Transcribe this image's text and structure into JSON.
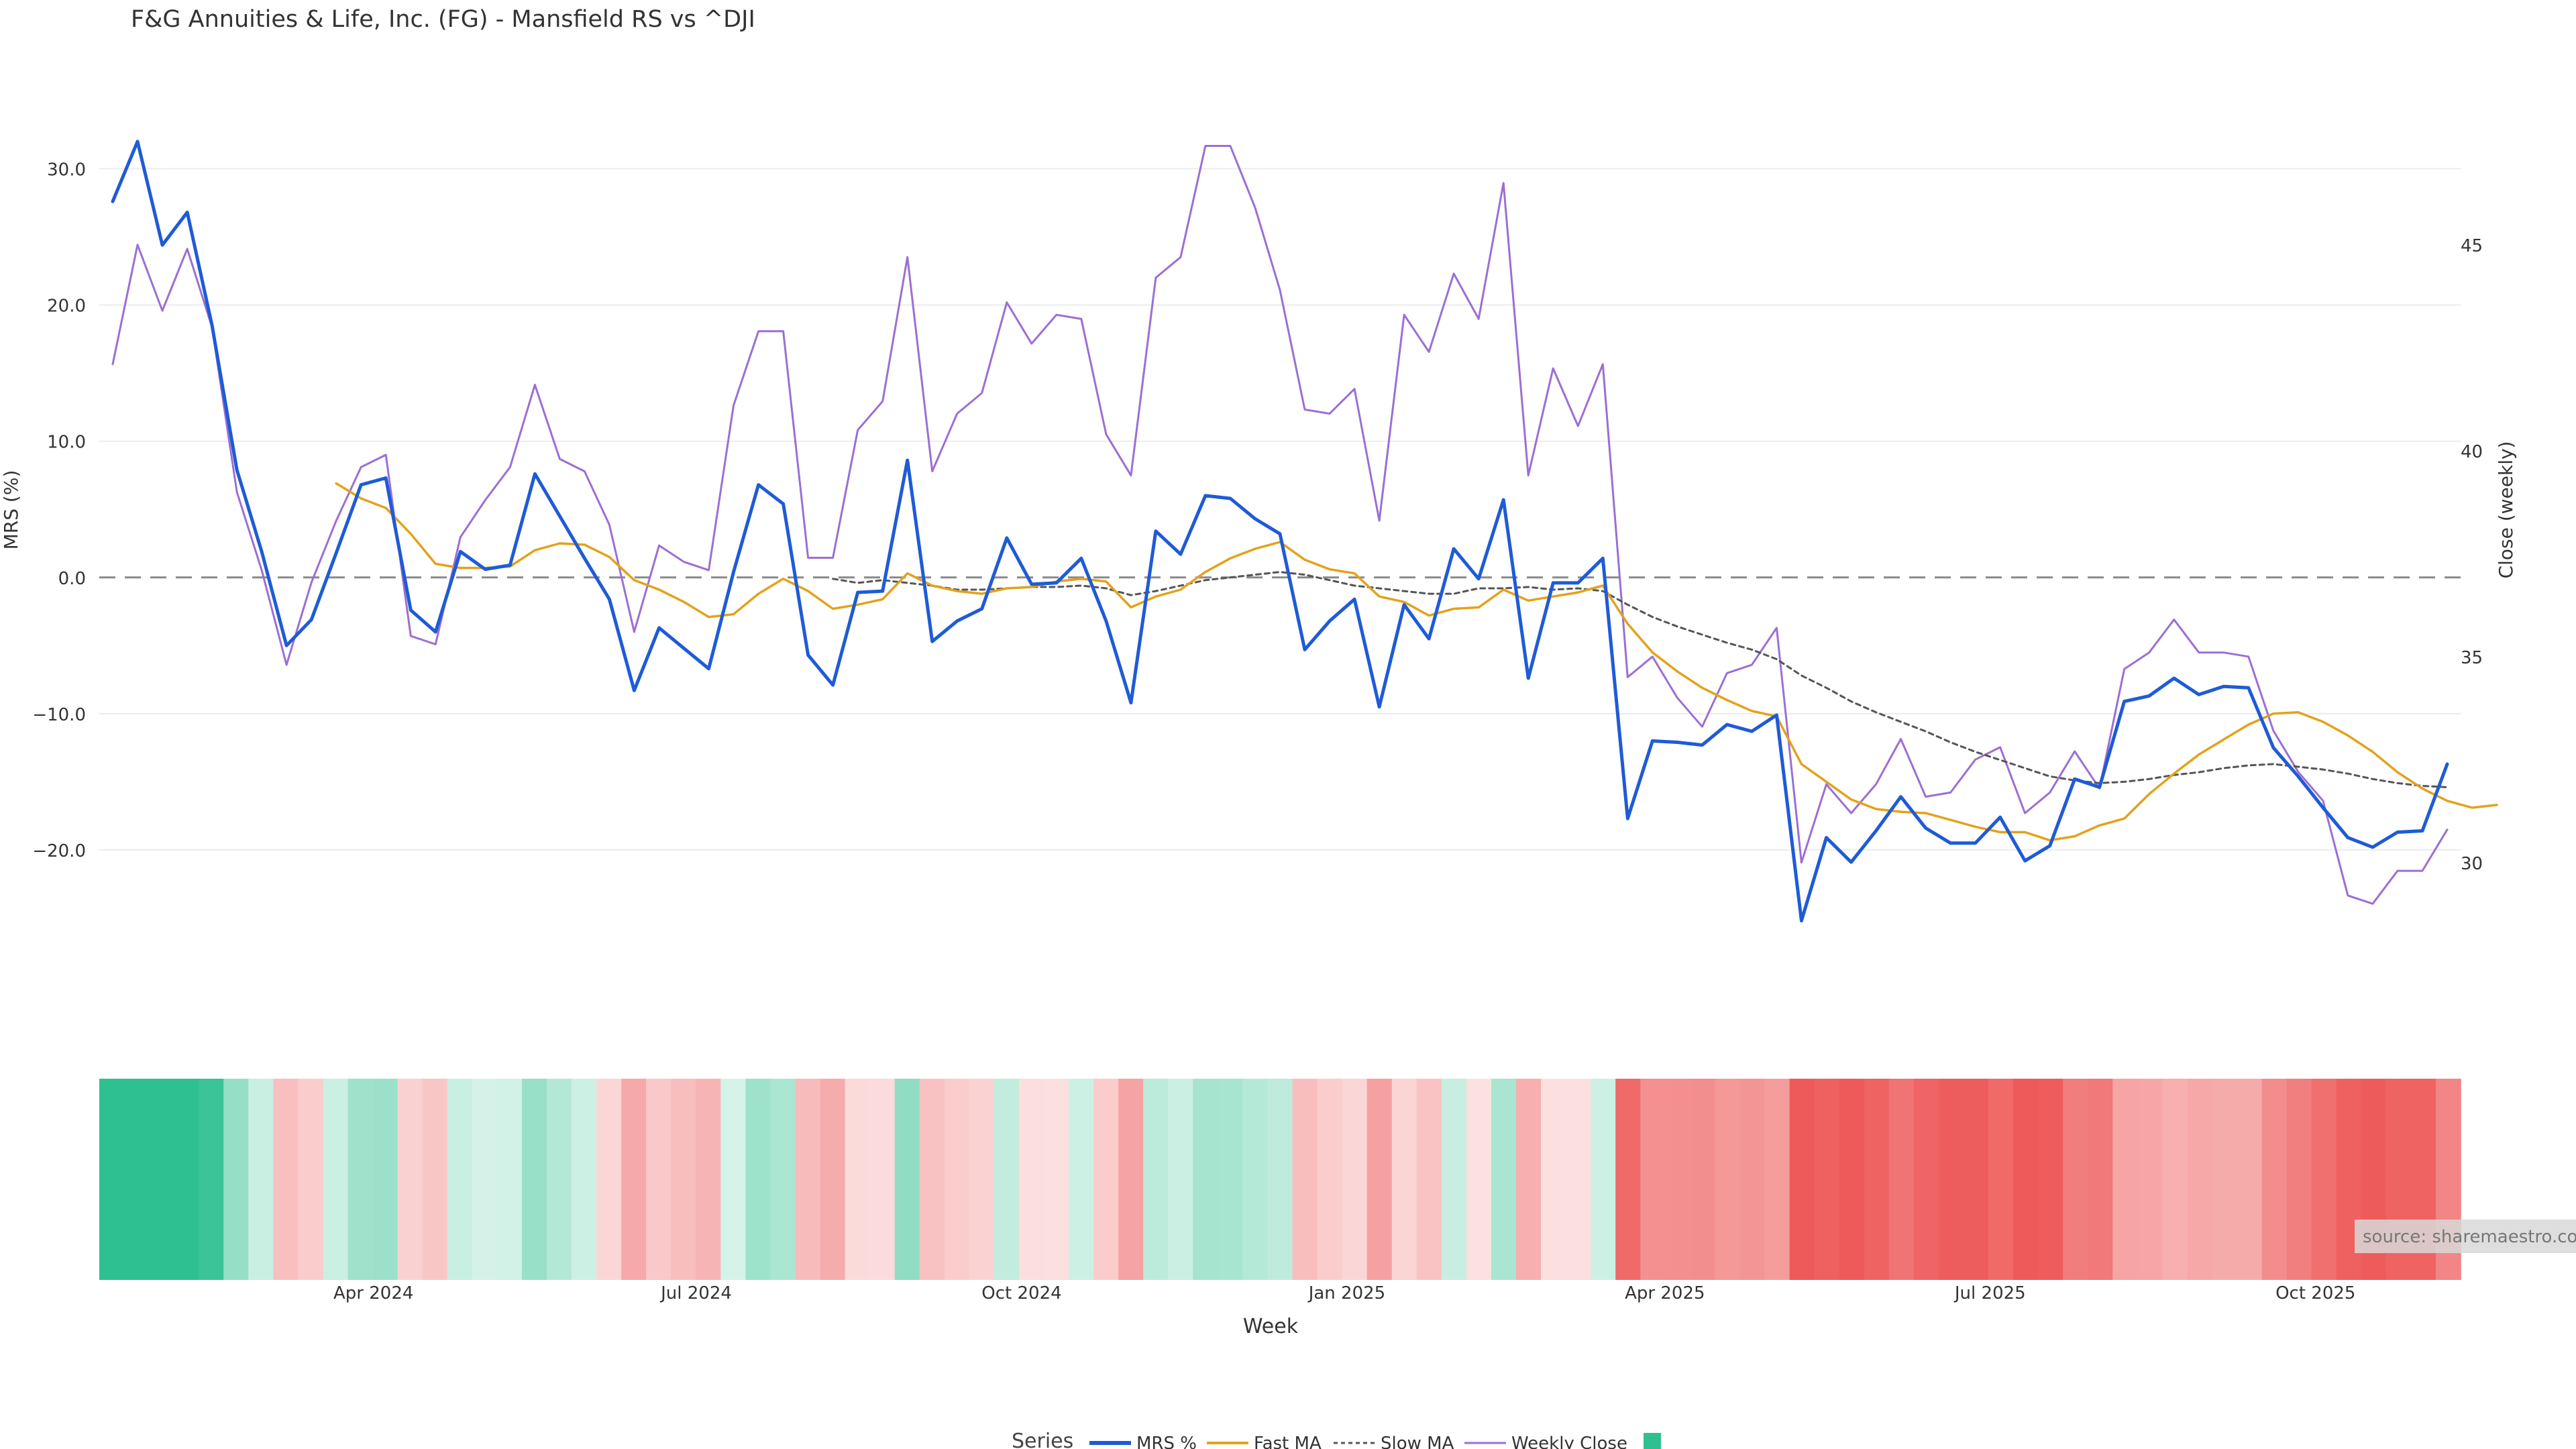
{
  "chart_data": {
    "type": "line",
    "title": "F&G Annuities & Life, Inc. (FG) - Mansfield RS vs ^DJI",
    "xlabel": "Week",
    "ylabel_left": "MRS (%)",
    "ylabel_right": "Close (weekly)",
    "ylim_left": [
      -30.0,
      35.0
    ],
    "ylim_right": [
      27.0,
      48.5
    ],
    "y_ticks_left": [
      30.0,
      20.0,
      10.0,
      0.0,
      -10.0,
      -20.0
    ],
    "y_tick_labels_left": [
      "30.0",
      "20.0",
      "10.0",
      "0.0",
      "−10.0",
      "−20.0"
    ],
    "y_ticks_right": [
      45,
      40,
      35,
      30
    ],
    "y_tick_labels_right": [
      "45",
      "40",
      "35",
      "30"
    ],
    "x_tick_labels": [
      "Apr 2024",
      "Jul 2024",
      "Oct 2024",
      "Jan 2025",
      "Apr 2025",
      "Jul 2025",
      "Oct 2025"
    ],
    "x_tick_weeks": [
      10.5,
      23.5,
      36.6,
      49.7,
      62.5,
      75.6,
      88.7
    ],
    "grid": true,
    "legend_placement": "bottom-center",
    "legend_title": "Series",
    "source_text": "source: sharemaestro.com",
    "colors": {
      "mrs": "#1f5bd6",
      "fast_ma": "#e3a21a",
      "slow_ma": "#555555",
      "weekly_close": "#9b6fd3",
      "legend_swatch": "#2ec090",
      "zero_line": "#8a8a8a"
    },
    "series": [
      {
        "name": "MRS %",
        "axis": "left",
        "x_start": 0,
        "values": [
          27.6,
          32.0,
          24.4,
          26.8,
          18.5,
          7.9,
          1.9,
          -5.0,
          -3.1,
          1.8,
          6.8,
          7.3,
          -2.4,
          -4.0,
          1.9,
          0.6,
          0.9,
          7.6,
          4.5,
          1.4,
          -1.6,
          -8.3,
          -3.7,
          -5.2,
          -6.7,
          0.4,
          6.8,
          5.4,
          -5.7,
          -7.9,
          -1.1,
          -1.0,
          8.6,
          -4.7,
          -3.2,
          -2.3,
          2.9,
          -0.5,
          -0.4,
          1.4,
          -3.2,
          -9.2,
          3.4,
          1.7,
          6.0,
          5.8,
          4.3,
          3.2,
          -5.3,
          -3.2,
          -1.6,
          -9.5,
          -2.0,
          -4.5,
          2.1,
          -0.1,
          5.7,
          -7.4,
          -0.4,
          -0.4,
          1.4,
          -17.7,
          -12.0,
          -12.1,
          -12.3,
          -10.8,
          -11.3,
          -10.1,
          -25.2,
          -19.1,
          -20.9,
          -18.6,
          -16.1,
          -18.4,
          -19.5,
          -19.5,
          -17.6,
          -20.8,
          -19.7,
          -14.8,
          -15.4,
          -9.1,
          -8.7,
          -7.4,
          -8.6,
          -8.0,
          -8.1,
          -12.5,
          -14.6,
          -16.9,
          -19.1,
          -19.8,
          -18.7,
          -18.6,
          -13.7
        ]
      },
      {
        "name": "Fast MA",
        "axis": "left",
        "x_start": 9,
        "values": [
          6.9,
          5.8,
          5.1,
          3.2,
          1.0,
          0.7,
          0.7,
          0.8,
          2.0,
          2.5,
          2.4,
          1.5,
          -0.2,
          -0.9,
          -1.8,
          -2.9,
          -2.7,
          -1.2,
          -0.1,
          -1.0,
          -2.3,
          -2.0,
          -1.6,
          0.3,
          -0.6,
          -1.0,
          -1.2,
          -0.8,
          -0.7,
          -0.3,
          -0.1,
          -0.3,
          -2.2,
          -1.4,
          -0.9,
          0.4,
          1.4,
          2.1,
          2.6,
          1.3,
          0.6,
          0.3,
          -1.4,
          -1.8,
          -2.8,
          -2.3,
          -2.2,
          -0.9,
          -1.7,
          -1.4,
          -1.1,
          -0.6,
          -3.4,
          -5.5,
          -6.9,
          -8.1,
          -9.0,
          -9.8,
          -10.2,
          -13.7,
          -15.0,
          -16.3,
          -17.0,
          -17.2,
          -17.3,
          -17.8,
          -18.3,
          -18.7,
          -18.7,
          -19.3,
          -19.0,
          -18.2,
          -17.7,
          -15.9,
          -14.4,
          -13.0,
          -11.9,
          -10.8,
          -10.0,
          -9.9,
          -10.6,
          -11.6,
          -12.8,
          -14.3,
          -15.5,
          -16.4,
          -16.9,
          -16.7
        ]
      },
      {
        "name": "Slow MA",
        "axis": "left",
        "x_start": 29,
        "values": [
          -0.1,
          -0.4,
          -0.2,
          -0.4,
          -0.6,
          -0.9,
          -0.9,
          -0.8,
          -0.7,
          -0.7,
          -0.6,
          -0.8,
          -1.3,
          -1.0,
          -0.6,
          -0.2,
          0.0,
          0.2,
          0.4,
          0.2,
          -0.2,
          -0.6,
          -0.8,
          -1.0,
          -1.2,
          -1.2,
          -0.8,
          -0.8,
          -0.7,
          -0.9,
          -0.8,
          -1.0,
          -2.0,
          -2.9,
          -3.6,
          -4.2,
          -4.8,
          -5.3,
          -6.0,
          -7.2,
          -8.1,
          -9.1,
          -9.9,
          -10.6,
          -11.3,
          -12.1,
          -12.8,
          -13.4,
          -14.0,
          -14.6,
          -14.9,
          -15.1,
          -15.0,
          -14.8,
          -14.5,
          -14.3,
          -14.0,
          -13.8,
          -13.7,
          -13.9,
          -14.1,
          -14.4,
          -14.8,
          -15.1,
          -15.3,
          -15.4
        ]
      },
      {
        "name": "Weekly Close",
        "axis": "right",
        "x_start": 0,
        "values": [
          42.1,
          45.0,
          43.4,
          44.9,
          43.0,
          39.0,
          37.1,
          34.8,
          36.8,
          38.3,
          39.6,
          39.9,
          35.5,
          35.3,
          37.9,
          38.8,
          39.6,
          41.6,
          39.8,
          39.5,
          38.2,
          35.6,
          37.7,
          37.3,
          37.1,
          41.1,
          42.9,
          42.9,
          37.4,
          37.4,
          40.5,
          41.2,
          44.7,
          39.5,
          40.9,
          41.4,
          43.6,
          42.6,
          43.3,
          43.2,
          40.4,
          39.4,
          44.2,
          44.7,
          47.4,
          47.4,
          45.9,
          43.9,
          41.0,
          40.9,
          41.5,
          38.3,
          43.3,
          42.4,
          44.3,
          43.2,
          46.5,
          39.4,
          42.0,
          40.6,
          42.1,
          34.5,
          35.0,
          34.0,
          33.3,
          34.6,
          34.8,
          35.7,
          30.0,
          31.9,
          31.2,
          31.9,
          33.0,
          31.6,
          31.7,
          32.5,
          32.8,
          31.2,
          31.7,
          32.7,
          31.8,
          34.7,
          35.1,
          35.9,
          35.1,
          35.1,
          35.0,
          33.2,
          32.2,
          31.5,
          29.2,
          29.0,
          29.8,
          29.8,
          30.8
        ]
      }
    ],
    "heatmap": {
      "weeks": 95,
      "values": [
        27.6,
        32.0,
        24.4,
        26.8,
        18.5,
        7.9,
        1.9,
        -5.0,
        -3.1,
        1.8,
        6.8,
        7.3,
        -2.4,
        -4.0,
        1.9,
        0.6,
        0.9,
        7.6,
        4.5,
        1.4,
        -1.6,
        -8.3,
        -3.7,
        -5.2,
        -6.7,
        0.4,
        6.8,
        5.4,
        -5.7,
        -7.9,
        -1.1,
        -1.0,
        8.6,
        -4.7,
        -3.2,
        -2.3,
        2.9,
        -0.5,
        -0.4,
        1.4,
        -3.2,
        -9.2,
        3.4,
        1.7,
        6.0,
        5.8,
        4.3,
        3.2,
        -5.3,
        -3.2,
        -1.6,
        -9.5,
        -2.0,
        -4.5,
        2.1,
        -0.1,
        5.7,
        -7.4,
        -0.4,
        -0.4,
        1.4,
        -17.7,
        -12.0,
        -12.1,
        -12.3,
        -10.8,
        -11.3,
        -10.1,
        -25.2,
        -19.1,
        -20.9,
        -18.6,
        -16.1,
        -18.4,
        -19.5,
        -19.5,
        -17.6,
        -20.8,
        -19.7,
        -14.8,
        -15.4,
        -9.1,
        -8.7,
        -7.4,
        -8.6,
        -8.0,
        -8.1,
        -12.5,
        -14.6,
        -16.9,
        -19.1,
        -19.8,
        -18.7,
        -18.6,
        -13.7
      ],
      "positive_color": "#2ec090",
      "negative_color": "#ee5a5a"
    }
  }
}
